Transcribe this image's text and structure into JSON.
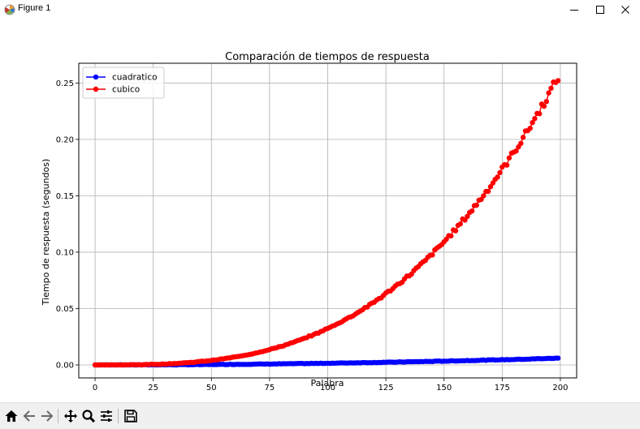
{
  "window": {
    "title": "Figure 1",
    "icons": {
      "app": "matplotlib-logo-icon",
      "minimize": "minimize-icon",
      "maximize": "maximize-icon",
      "close": "close-icon"
    }
  },
  "toolbar": {
    "buttons": [
      {
        "name": "home-button",
        "icon": "home-icon"
      },
      {
        "name": "back-button",
        "icon": "arrow-left-icon"
      },
      {
        "name": "forward-button",
        "icon": "arrow-right-icon"
      },
      {
        "name": "pan-button",
        "icon": "move-icon"
      },
      {
        "name": "zoom-button",
        "icon": "magnifier-icon"
      },
      {
        "name": "configure-subplots-button",
        "icon": "sliders-icon"
      },
      {
        "name": "save-button",
        "icon": "floppy-disk-icon"
      }
    ]
  },
  "chart_data": {
    "type": "scatter",
    "title": "Comparación de tiempos de respuesta",
    "xlabel": "Palabra",
    "ylabel": "Tiempo de respuesta (segundos)",
    "xlim": [
      -7,
      207
    ],
    "ylim": [
      -0.0115,
      0.2675
    ],
    "xticks": [
      0,
      25,
      50,
      75,
      100,
      125,
      150,
      175,
      200
    ],
    "yticks": [
      0.0,
      0.05,
      0.1,
      0.15,
      0.2,
      0.25
    ],
    "xtick_labels": [
      "0",
      "25",
      "50",
      "75",
      "100",
      "125",
      "150",
      "175",
      "200"
    ],
    "ytick_labels": [
      "0.00",
      "0.05",
      "0.10",
      "0.15",
      "0.20",
      "0.25"
    ],
    "grid": true,
    "legend": "upper-left",
    "x": {
      "start": 0,
      "stop": 199,
      "step": 1
    },
    "series": [
      {
        "name": "cuadratico",
        "color": "#0000ff",
        "marker": "circle-line",
        "model": "quadratic",
        "value_at_0": 0.0,
        "value_at_199": 0.006
      },
      {
        "name": "cubico",
        "color": "#ff0000",
        "marker": "circle-line",
        "model": "cubic",
        "value_at_0": 0.0,
        "value_at_199": 0.255
      }
    ]
  }
}
